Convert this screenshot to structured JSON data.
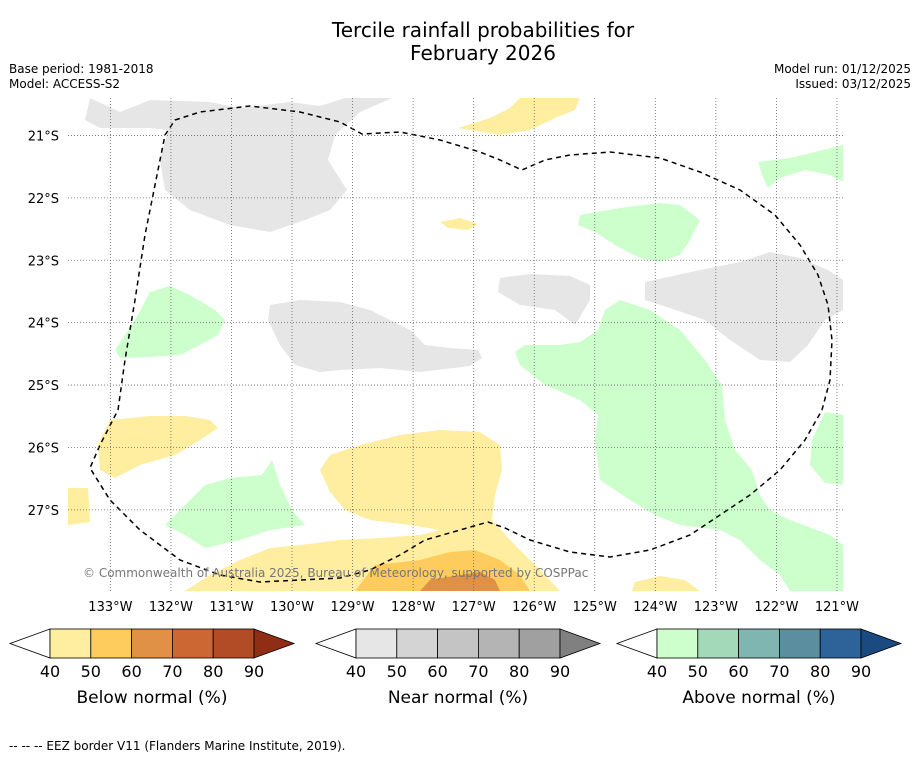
{
  "chart_data": {
    "type": "heatmap",
    "title_line1": "Tercile rainfall probabilities for",
    "title_line2": "February 2026",
    "meta_left": [
      "Base period: 1981-2018",
      "Model: ACCESS-S2"
    ],
    "meta_right": [
      "Model run: 01/12/2025",
      "Issued: 03/12/2025"
    ],
    "lon_range": [
      133.7,
      120.9
    ],
    "lat_range": [
      20.4,
      28.3
    ],
    "lon_ticks": [
      133,
      132,
      131,
      130,
      129,
      128,
      127,
      126,
      125,
      124,
      123,
      122,
      121
    ],
    "lon_tick_labels": [
      "133°W",
      "132°W",
      "131°W",
      "130°W",
      "129°W",
      "128°W",
      "127°W",
      "126°W",
      "125°W",
      "124°W",
      "123°W",
      "122°W",
      "121°W"
    ],
    "lat_ticks": [
      21,
      22,
      23,
      24,
      25,
      26,
      27
    ],
    "lat_tick_labels": [
      "21°S",
      "22°S",
      "23°S",
      "24°S",
      "25°S",
      "26°S",
      "27°S"
    ],
    "copyright": "© Commonwealth of Australia 2025, Bureau of Meteorology, supported by COSPPac",
    "colorbars": [
      {
        "name": "Below normal (%)",
        "ticks": [
          "40",
          "50",
          "60",
          "70",
          "80",
          "90"
        ],
        "colors": [
          "#ffffff",
          "#ffeda0",
          "#fecc5c",
          "#e09145",
          "#cc6633",
          "#b24c26",
          "#8f2d15"
        ]
      },
      {
        "name": "Near normal (%)",
        "ticks": [
          "40",
          "50",
          "60",
          "70",
          "80",
          "90"
        ],
        "colors": [
          "#ffffff",
          "#e6e6e6",
          "#d4d4d4",
          "#c4c4c4",
          "#b4b4b4",
          "#a0a0a0",
          "#808080"
        ]
      },
      {
        "name": "Above normal (%)",
        "ticks": [
          "40",
          "50",
          "60",
          "70",
          "80",
          "90"
        ],
        "colors": [
          "#ffffff",
          "#ccffcc",
          "#a3d9b8",
          "#80b6b2",
          "#5b8fa0",
          "#2e6399",
          "#1a4a80"
        ]
      }
    ],
    "regions": [
      {
        "category": "Near normal",
        "level": "40-50",
        "area": "north-west 21°S-22.5°S"
      },
      {
        "category": "Near normal",
        "level": "40-50",
        "area": "central 24°S-25°S"
      },
      {
        "category": "Near normal",
        "level": "40-50",
        "area": "east 23°S-25°S"
      },
      {
        "category": "Above normal",
        "level": "40-50",
        "area": "east 24°S-28°S"
      },
      {
        "category": "Above normal",
        "level": "40-50",
        "area": "west 24°S-25°S"
      },
      {
        "category": "Below normal",
        "level": "40-60",
        "area": "south 26°S-28°S"
      }
    ],
    "footnote": "--  --  -- EEZ border V11 (Flanders Marine Institute, 2019)."
  }
}
